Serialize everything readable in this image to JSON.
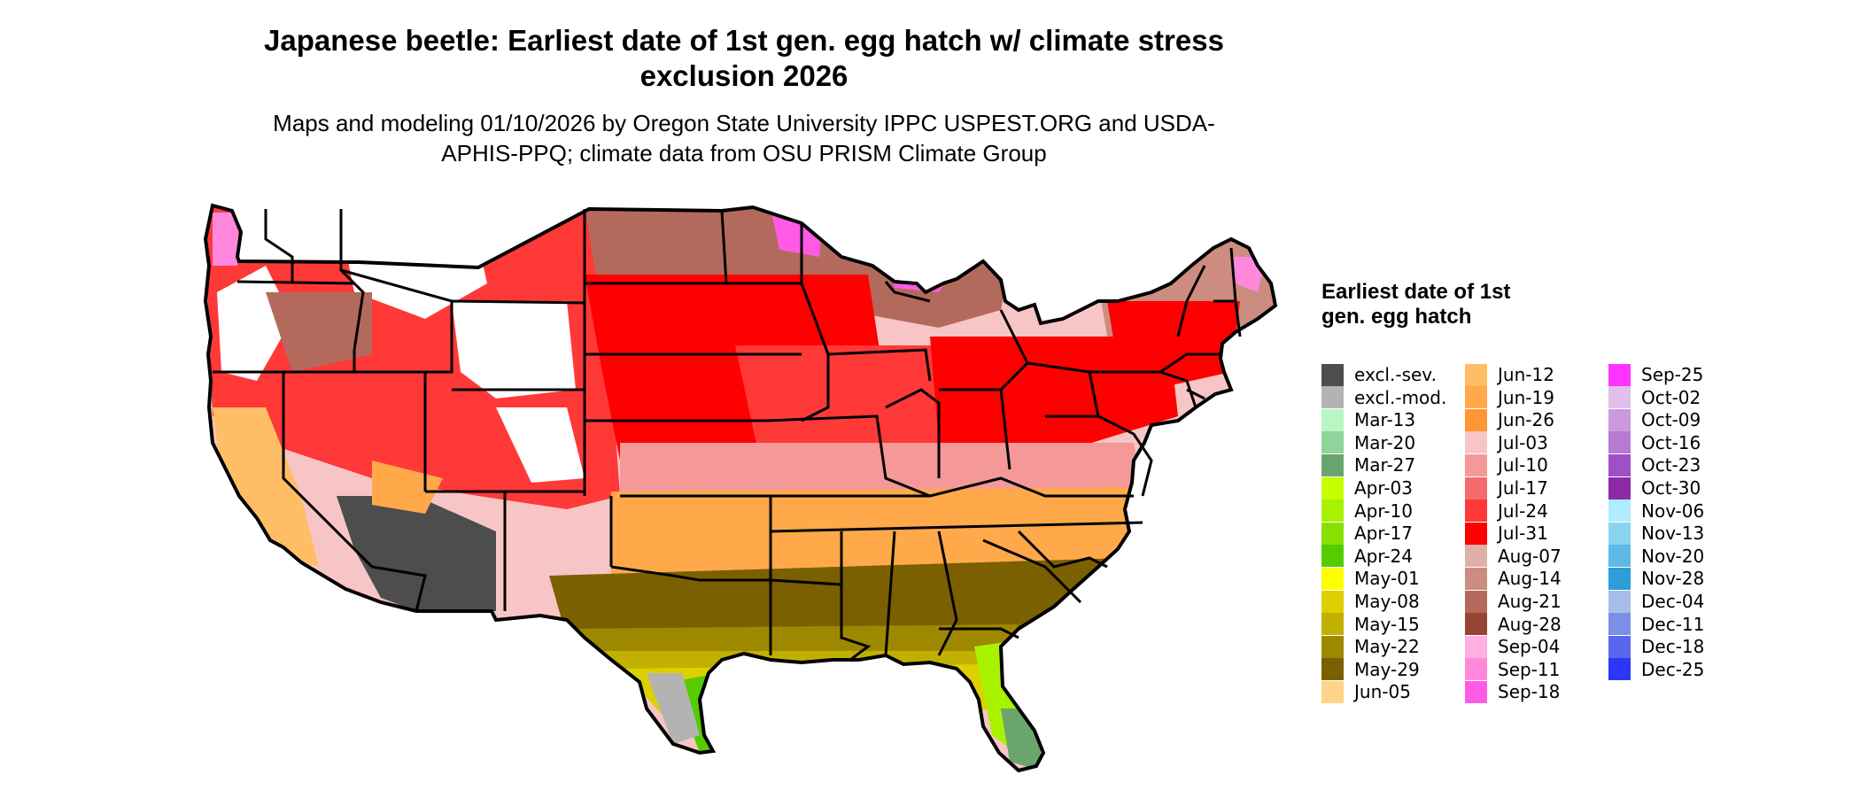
{
  "title": "Japanese beetle: Earliest date of 1st gen. egg hatch w/ climate stress exclusion 2026",
  "subtitle": "Maps and modeling 01/10/2026 by Oregon State University IPPC USPEST.ORG and USDA-APHIS-PPQ; climate data from OSU PRISM Climate Group",
  "legend": {
    "title": "Earliest date of 1st gen. egg hatch",
    "items": [
      {
        "label": "excl.-sev.",
        "color": "#4d4d4d"
      },
      {
        "label": "excl.-mod.",
        "color": "#b3b3b3"
      },
      {
        "label": "Mar-13",
        "color": "#b7f7c3"
      },
      {
        "label": "Mar-20",
        "color": "#8fd49a"
      },
      {
        "label": "Mar-27",
        "color": "#6aa56e"
      },
      {
        "label": "Apr-03",
        "color": "#c6ff00"
      },
      {
        "label": "Apr-10",
        "color": "#a8f200"
      },
      {
        "label": "Apr-17",
        "color": "#88e000"
      },
      {
        "label": "Apr-24",
        "color": "#55cc00"
      },
      {
        "label": "May-01",
        "color": "#ffff00"
      },
      {
        "label": "May-08",
        "color": "#ddd000"
      },
      {
        "label": "May-15",
        "color": "#c2b000"
      },
      {
        "label": "May-22",
        "color": "#9e8800"
      },
      {
        "label": "May-29",
        "color": "#7a6000"
      },
      {
        "label": "Jun-05",
        "color": "#ffd38a"
      },
      {
        "label": "Jun-12",
        "color": "#ffbe66"
      },
      {
        "label": "Jun-19",
        "color": "#ffa94a"
      },
      {
        "label": "Jun-26",
        "color": "#ff9633"
      },
      {
        "label": "Jul-03",
        "color": "#f7c5c5"
      },
      {
        "label": "Jul-10",
        "color": "#f59898"
      },
      {
        "label": "Jul-17",
        "color": "#f56b6b"
      },
      {
        "label": "Jul-24",
        "color": "#ff3838"
      },
      {
        "label": "Jul-31",
        "color": "#ff0000"
      },
      {
        "label": "Aug-07",
        "color": "#e0b0a6"
      },
      {
        "label": "Aug-14",
        "color": "#cc8c80"
      },
      {
        "label": "Aug-21",
        "color": "#b36a5c"
      },
      {
        "label": "Aug-28",
        "color": "#964433"
      },
      {
        "label": "Sep-04",
        "color": "#ffb0e0"
      },
      {
        "label": "Sep-11",
        "color": "#ff88dd"
      },
      {
        "label": "Sep-18",
        "color": "#ff5ae6"
      },
      {
        "label": "Sep-25",
        "color": "#ff33ff"
      },
      {
        "label": "Oct-02",
        "color": "#e0c0ea"
      },
      {
        "label": "Oct-09",
        "color": "#cc99dd"
      },
      {
        "label": "Oct-16",
        "color": "#b77ad1"
      },
      {
        "label": "Oct-23",
        "color": "#a050c6"
      },
      {
        "label": "Oct-30",
        "color": "#8c2aa8"
      },
      {
        "label": "Nov-06",
        "color": "#b0ecff"
      },
      {
        "label": "Nov-13",
        "color": "#8ad4f2"
      },
      {
        "label": "Nov-20",
        "color": "#5cb9e8"
      },
      {
        "label": "Nov-28",
        "color": "#2e9ed8"
      },
      {
        "label": "Dec-04",
        "color": "#a8bde8"
      },
      {
        "label": "Dec-11",
        "color": "#7b8ee8"
      },
      {
        "label": "Dec-18",
        "color": "#5a66ee"
      },
      {
        "label": "Dec-25",
        "color": "#2a38f5"
      }
    ]
  }
}
